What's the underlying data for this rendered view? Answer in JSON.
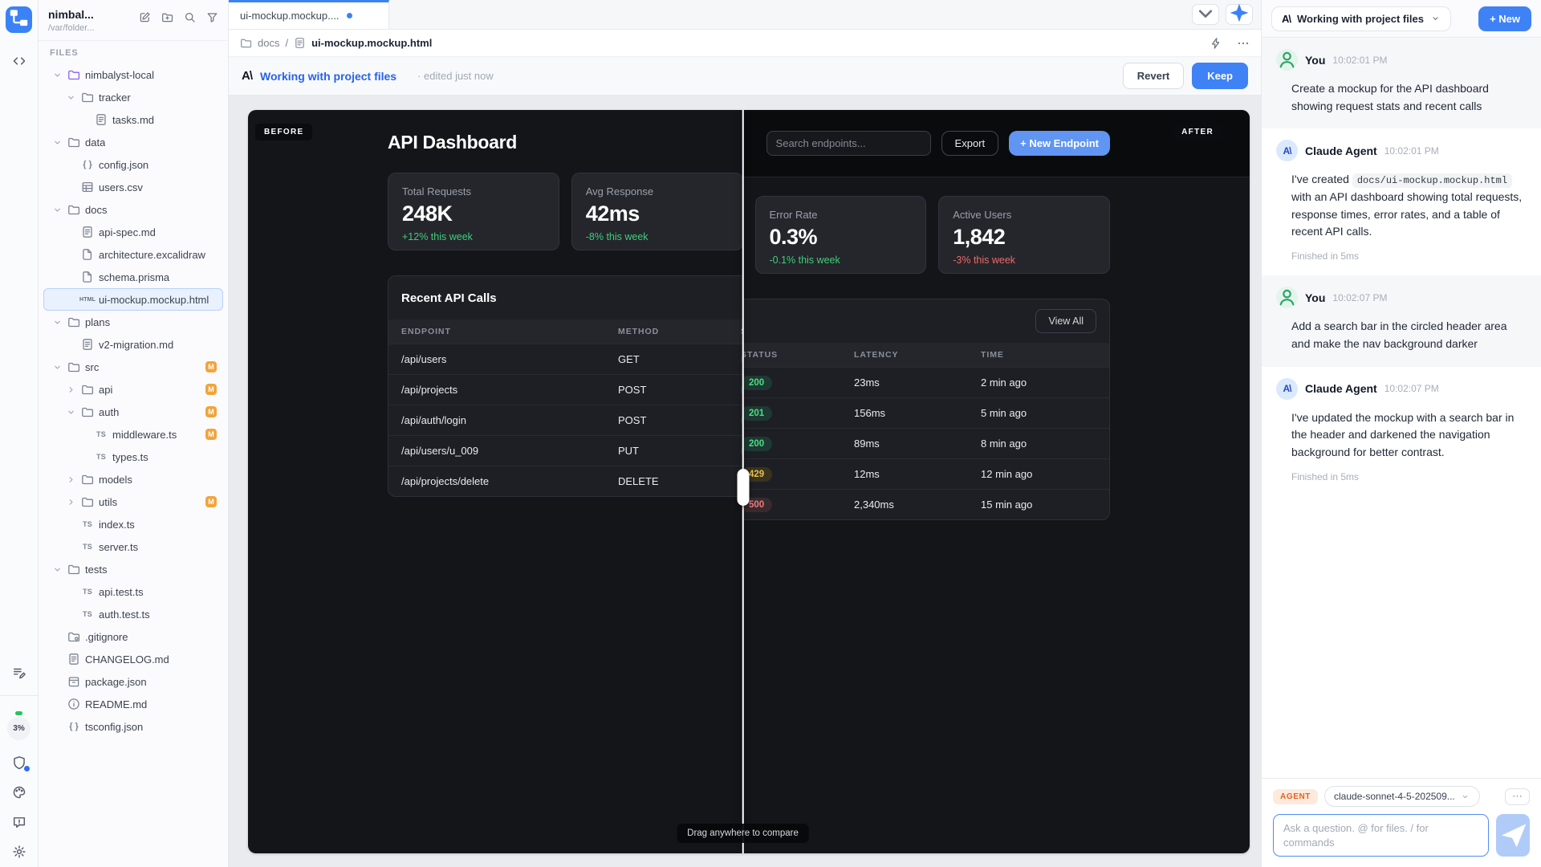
{
  "left_rail": {
    "usage_percent": "3%",
    "icons": [
      "app-logo",
      "code-icon",
      "notes-edit-icon",
      "usage-indicator",
      "shield-icon",
      "palette-icon",
      "feedback-icon",
      "settings-icon"
    ]
  },
  "sidebar": {
    "project_name": "nimbal...",
    "project_path": "/var/folder...",
    "files_label": "FILES",
    "header_icons": [
      "edit-icon",
      "new-folder-icon",
      "search-icon",
      "filter-icon"
    ],
    "tree": [
      {
        "label": "nimbalyst-local",
        "icon": "folder",
        "depth": 0,
        "chevron": "open",
        "purple": true
      },
      {
        "label": "tracker",
        "icon": "folder",
        "depth": 1,
        "chevron": "open"
      },
      {
        "label": "tasks.md",
        "icon": "doc",
        "depth": 2
      },
      {
        "label": "data",
        "icon": "folder",
        "depth": 0,
        "chevron": "open"
      },
      {
        "label": "config.json",
        "icon": "braces",
        "depth": 1
      },
      {
        "label": "users.csv",
        "icon": "table",
        "depth": 1
      },
      {
        "label": "docs",
        "icon": "folder",
        "depth": 0,
        "chevron": "open"
      },
      {
        "label": "api-spec.md",
        "icon": "doc",
        "depth": 1
      },
      {
        "label": "architecture.excalidraw",
        "icon": "file",
        "depth": 1
      },
      {
        "label": "schema.prisma",
        "icon": "file",
        "depth": 1
      },
      {
        "label": "ui-mockup.mockup.html",
        "icon": "html",
        "depth": 1,
        "selected": true
      },
      {
        "label": "plans",
        "icon": "folder",
        "depth": 0,
        "chevron": "open"
      },
      {
        "label": "v2-migration.md",
        "icon": "doc",
        "depth": 1
      },
      {
        "label": "src",
        "icon": "folder",
        "depth": 0,
        "chevron": "open",
        "badge": "M"
      },
      {
        "label": "api",
        "icon": "folder",
        "depth": 1,
        "chevron": "closed",
        "badge": "M"
      },
      {
        "label": "auth",
        "icon": "folder",
        "depth": 1,
        "chevron": "open",
        "badge": "M"
      },
      {
        "label": "middleware.ts",
        "icon": "ts",
        "depth": 2,
        "badge": "M"
      },
      {
        "label": "types.ts",
        "icon": "ts",
        "depth": 2
      },
      {
        "label": "models",
        "icon": "folder",
        "depth": 1,
        "chevron": "closed"
      },
      {
        "label": "utils",
        "icon": "folder",
        "depth": 1,
        "chevron": "closed",
        "badge": "M"
      },
      {
        "label": "index.ts",
        "icon": "ts",
        "depth": 1
      },
      {
        "label": "server.ts",
        "icon": "ts",
        "depth": 1
      },
      {
        "label": "tests",
        "icon": "folder",
        "depth": 0,
        "chevron": "open"
      },
      {
        "label": "api.test.ts",
        "icon": "ts",
        "depth": 1
      },
      {
        "label": "auth.test.ts",
        "icon": "ts",
        "depth": 1
      },
      {
        "label": ".gitignore",
        "icon": "gitfolder",
        "depth": 0
      },
      {
        "label": "CHANGELOG.md",
        "icon": "doc",
        "depth": 0
      },
      {
        "label": "package.json",
        "icon": "package",
        "depth": 0
      },
      {
        "label": "README.md",
        "icon": "info",
        "depth": 0
      },
      {
        "label": "tsconfig.json",
        "icon": "braces",
        "depth": 0
      }
    ]
  },
  "editor": {
    "tab_label": "ui-mockup.mockup....",
    "breadcrumb": {
      "folder": "docs",
      "separator": "/",
      "file": "ui-mockup.mockup.html"
    },
    "status_bar": {
      "agent_label": "Working with project files",
      "edited_note": "· edited just now",
      "revert_label": "Revert",
      "keep_label": "Keep"
    }
  },
  "preview": {
    "before_label": "BEFORE",
    "after_label": "AFTER",
    "drag_hint": "Drag anywhere to compare",
    "slider_percent": 49.4,
    "dashboard": {
      "title": "API Dashboard",
      "search_placeholder": "Search endpoints...",
      "export_label": "Export",
      "new_endpoint_label": "+ New Endpoint",
      "stats": [
        {
          "label": "Total Requests",
          "value": "248K",
          "delta": "+12% this week",
          "trend": "up"
        },
        {
          "label": "Avg Response",
          "value": "42ms",
          "delta": "-8% this week",
          "trend": "up"
        },
        {
          "label": "Error Rate",
          "value": "0.3%",
          "delta": "-0.1% this week",
          "trend": "up"
        },
        {
          "label": "Active Users",
          "value": "1,842",
          "delta": "-3% this week",
          "trend": "down"
        }
      ],
      "table": {
        "title": "Recent API Calls",
        "view_all_label": "View All",
        "columns": [
          "ENDPOINT",
          "METHOD",
          "STATUS",
          "LATENCY",
          "TIME"
        ],
        "rows": [
          {
            "endpoint": "/api/users",
            "method": "GET",
            "status": "200",
            "status_kind": "success",
            "latency": "23ms",
            "time": "2 min ago"
          },
          {
            "endpoint": "/api/projects",
            "method": "POST",
            "status": "201",
            "status_kind": "success",
            "latency": "156ms",
            "time": "5 min ago"
          },
          {
            "endpoint": "/api/auth/login",
            "method": "POST",
            "status": "200",
            "status_kind": "success",
            "latency": "89ms",
            "time": "8 min ago"
          },
          {
            "endpoint": "/api/users/u_009",
            "method": "PUT",
            "status": "429",
            "status_kind": "warn",
            "latency": "12ms",
            "time": "12 min ago"
          },
          {
            "endpoint": "/api/projects/delete",
            "method": "DELETE",
            "status": "500",
            "status_kind": "error",
            "latency": "2,340ms",
            "time": "15 min ago"
          }
        ]
      }
    }
  },
  "chat": {
    "header": {
      "session_label": "Working with project files",
      "new_label": "+ New"
    },
    "messages": [
      {
        "role": "user",
        "author": "You",
        "time": "10:02:01 PM",
        "parts": [
          {
            "type": "text",
            "value": "Create a mockup for the API dashboard showing request stats and recent calls"
          }
        ]
      },
      {
        "role": "agent",
        "author": "Claude Agent",
        "time": "10:02:01 PM",
        "parts": [
          {
            "type": "text",
            "value": "I've created "
          },
          {
            "type": "code",
            "value": "docs/ui-mockup.mockup.html"
          },
          {
            "type": "text",
            "value": " with an API dashboard showing total requests, response times, error rates, and a table of recent API calls."
          }
        ],
        "footer": "Finished in 5ms"
      },
      {
        "role": "user",
        "author": "You",
        "time": "10:02:07 PM",
        "parts": [
          {
            "type": "text",
            "value": "Add a search bar in the circled header area and make the nav background darker"
          }
        ]
      },
      {
        "role": "agent",
        "author": "Claude Agent",
        "time": "10:02:07 PM",
        "parts": [
          {
            "type": "text",
            "value": "I've updated the mockup with a search bar in the header and darkened the navigation background for better contrast."
          }
        ],
        "footer": "Finished in 5ms"
      }
    ],
    "composer": {
      "agent_badge": "AGENT",
      "model": "claude-sonnet-4-5-202509...",
      "menu": "⋯",
      "placeholder": "Ask a question. @ for files. / for commands"
    }
  },
  "colors": {
    "accent": "#3b82f6",
    "agent_blue": "#2563eb",
    "success": "#4ade80",
    "warning": "#e7c14b",
    "error": "#f07a7a",
    "modified_badge": "#f2a43d"
  }
}
